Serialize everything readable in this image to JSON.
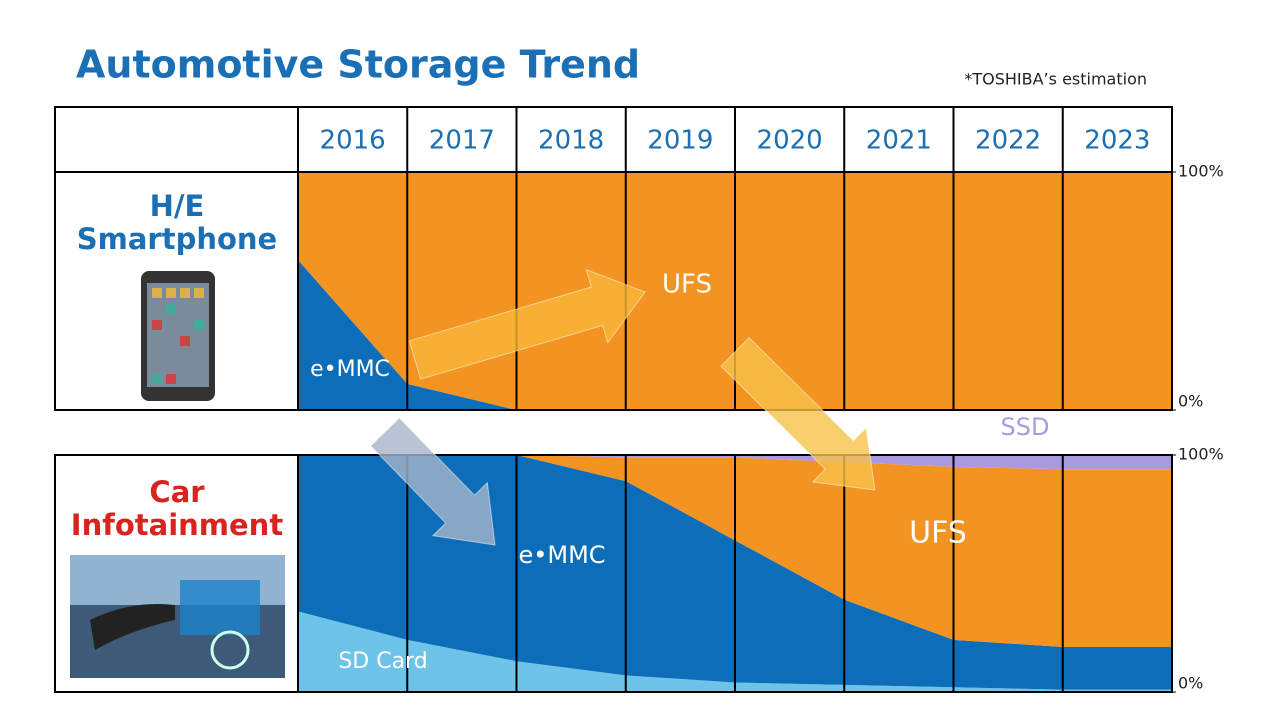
{
  "title": "Automotive Storage Trend",
  "note": "*TOSHIBA’s estimation",
  "columns": [
    "2016",
    "2017",
    "2018",
    "2019",
    "2020",
    "2021",
    "2022",
    "2023"
  ],
  "chart_data": [
    {
      "type": "area",
      "stacked": true,
      "title": "H/E Smartphone",
      "ylim": [
        0,
        100
      ],
      "yticks": [
        {
          "value": 0,
          "label": "0%"
        },
        {
          "value": 100,
          "label": "100%"
        }
      ],
      "series": [
        {
          "name": "e•MMC",
          "color": "#0e6db8",
          "values": [
            63,
            11,
            0,
            0,
            0,
            0,
            0,
            0
          ]
        },
        {
          "name": "UFS",
          "color": "#f39321",
          "values": [
            37,
            89,
            100,
            100,
            100,
            100,
            100,
            100
          ]
        }
      ]
    },
    {
      "type": "area",
      "stacked": true,
      "title": "Car Infotainment",
      "ylim": [
        0,
        100
      ],
      "yticks": [
        {
          "value": 0,
          "label": "0%"
        },
        {
          "value": 100,
          "label": "100%"
        }
      ],
      "series": [
        {
          "name": "SD Card",
          "color": "#6ec3e8",
          "values": [
            34,
            22,
            13,
            7,
            4,
            3,
            2,
            1
          ]
        },
        {
          "name": "e•MMC",
          "color": "#0e6db8",
          "values": [
            66,
            78,
            87,
            82,
            60,
            36,
            20,
            18
          ]
        },
        {
          "name": "UFS",
          "color": "#f39321",
          "values": [
            0,
            0,
            0,
            10,
            35,
            58,
            73,
            75
          ]
        },
        {
          "name": "SSD",
          "color": "#a99ae0",
          "values": [
            0,
            0,
            0,
            1,
            1,
            3,
            5,
            6
          ]
        }
      ]
    }
  ]
}
